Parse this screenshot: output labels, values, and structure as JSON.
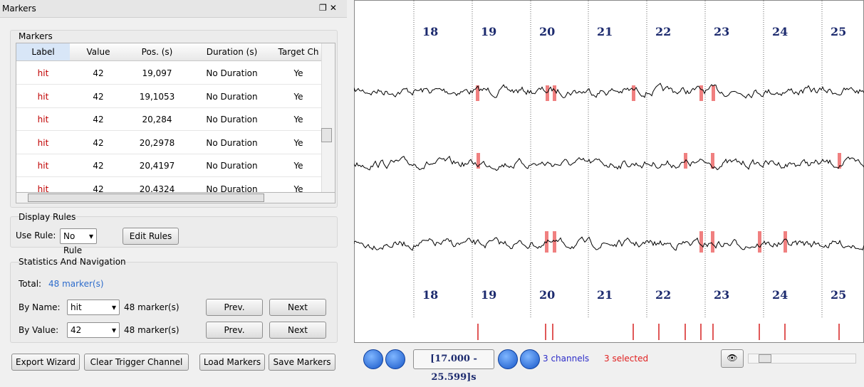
{
  "panel": {
    "title": "Markers"
  },
  "markers": {
    "group": "Markers",
    "columns": [
      "Label",
      "Value",
      "Pos. (s)",
      "Duration (s)",
      "Target Ch"
    ],
    "rows": [
      [
        "hit",
        42,
        "19,097",
        "No Duration",
        "Ye"
      ],
      [
        "hit",
        42,
        "19,1053",
        "No Duration",
        "Ye"
      ],
      [
        "hit",
        42,
        "20,284",
        "No Duration",
        "Ye"
      ],
      [
        "hit",
        42,
        "20,2978",
        "No Duration",
        "Ye"
      ],
      [
        "hit",
        42,
        "20,4197",
        "No Duration",
        "Ye"
      ],
      [
        "hit",
        42,
        "20,4324",
        "No Duration",
        "Ye"
      ]
    ]
  },
  "display_rules": {
    "group": "Display Rules",
    "use_rule_label": "Use Rule:",
    "rule": "No Rule",
    "edit": "Edit Rules"
  },
  "stats": {
    "group": "Statistics And Navigation",
    "total_label": "Total:",
    "total": "48 marker(s)",
    "by_name_label": "By Name:",
    "name": "hit",
    "name_count": "48 marker(s)",
    "by_value_label": "By Value:",
    "value": "42",
    "value_count": "48 marker(s)",
    "prev": "Prev.",
    "next": "Next"
  },
  "buttons": [
    "Export Wizard",
    "Clear Trigger Channel",
    "Load Markers",
    "Save Markers"
  ],
  "viewer": {
    "time_labels": [
      "18",
      "19",
      "20",
      "21",
      "22",
      "23",
      "24",
      "25"
    ],
    "range": "[17.000 - 25.599]s",
    "channels": "3 channels",
    "selected": "3 selected"
  }
}
